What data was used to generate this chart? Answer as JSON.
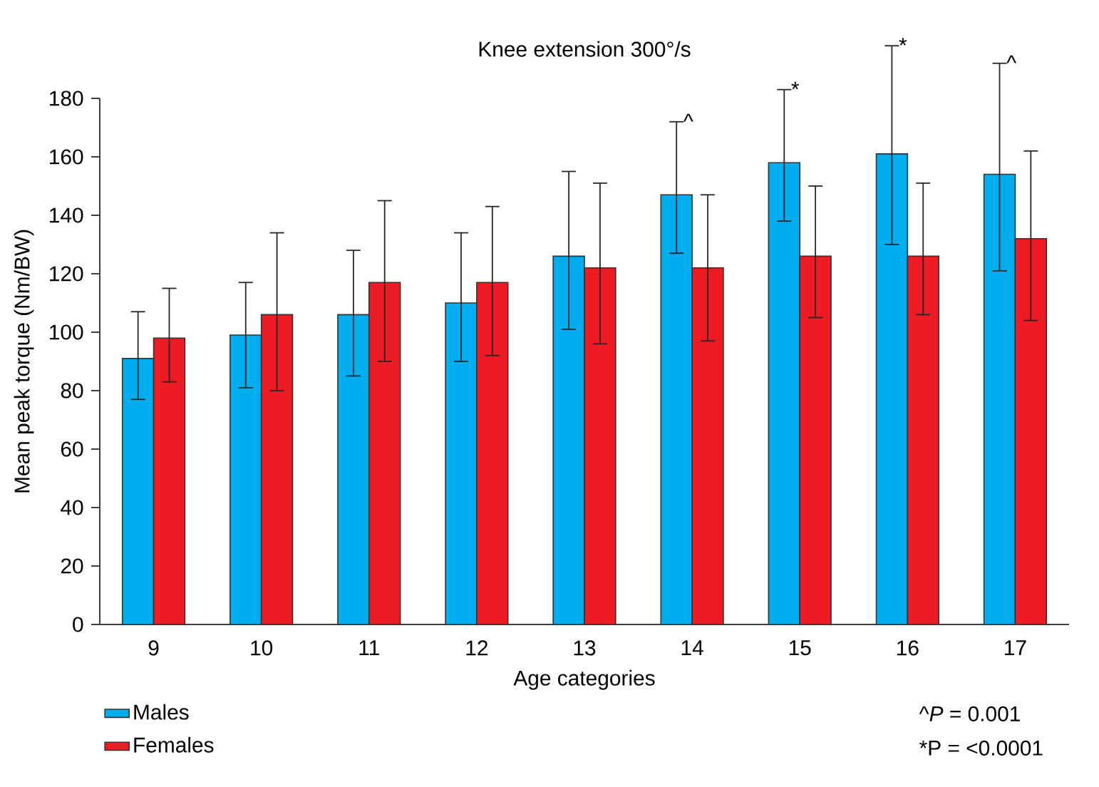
{
  "chart_data": {
    "type": "bar",
    "title": "Knee extension 300°/s",
    "xlabel": "Age categories",
    "ylabel": "Mean peak torque (Nm/BW)",
    "categories": [
      "9",
      "10",
      "11",
      "12",
      "13",
      "14",
      "15",
      "16",
      "17"
    ],
    "series": [
      {
        "name": "Males",
        "color": "#00aeef",
        "values": [
          91,
          99,
          106,
          110,
          126,
          147,
          158,
          161,
          154
        ],
        "errors": [
          [
            77,
            107
          ],
          [
            81,
            117
          ],
          [
            85,
            128
          ],
          [
            90,
            134
          ],
          [
            101,
            155
          ],
          [
            127,
            172
          ],
          [
            138,
            183
          ],
          [
            130,
            198
          ],
          [
            121,
            192
          ]
        ]
      },
      {
        "name": "Females",
        "color": "#ed1c24",
        "values": [
          98,
          106,
          117,
          117,
          122,
          122,
          126,
          126,
          132
        ],
        "errors": [
          [
            83,
            115
          ],
          [
            80,
            134
          ],
          [
            90,
            145
          ],
          [
            92,
            143
          ],
          [
            96,
            151
          ],
          [
            97,
            147
          ],
          [
            105,
            150
          ],
          [
            106,
            151
          ],
          [
            104,
            162
          ]
        ]
      }
    ],
    "ylim": [
      0,
      180
    ],
    "yticks": [
      0,
      20,
      40,
      60,
      80,
      100,
      120,
      140,
      160,
      180
    ],
    "grid": false,
    "legend": "bottom left",
    "annotations": [
      "^",
      "*",
      "*",
      "^",
      "^*P* = 0.001",
      "*P = <0.0001"
    ]
  }
}
